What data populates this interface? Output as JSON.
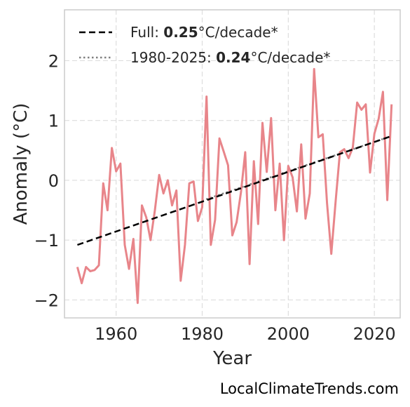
{
  "colors": {
    "anomaly_line": "#e8858a",
    "trend_full": "#000000",
    "trend_recent": "#808080",
    "grid": "#dddddd",
    "frame": "#cccccc"
  },
  "footer": {
    "source_text": "LocalClimateTrends.com"
  },
  "chart_data": {
    "type": "line",
    "xlabel": "Year",
    "ylabel": "Anomaly (°C)",
    "xlim": [
      1948,
      2026
    ],
    "ylim": [
      -2.3,
      2.85
    ],
    "xticks": [
      1960,
      1980,
      2000,
      2020
    ],
    "yticks": [
      -2,
      -1,
      0,
      1,
      2
    ],
    "ytick_labels": [
      "−2",
      "−1",
      "0",
      "1",
      "2"
    ],
    "grid": true,
    "legend_position": "top-left",
    "x": [
      1951,
      1952,
      1953,
      1954,
      1955,
      1956,
      1957,
      1958,
      1959,
      1960,
      1961,
      1962,
      1963,
      1964,
      1965,
      1966,
      1967,
      1968,
      1969,
      1970,
      1971,
      1972,
      1973,
      1974,
      1975,
      1976,
      1977,
      1978,
      1979,
      1980,
      1981,
      1982,
      1983,
      1984,
      1985,
      1986,
      1987,
      1988,
      1989,
      1990,
      1991,
      1992,
      1993,
      1994,
      1995,
      1996,
      1997,
      1998,
      1999,
      2000,
      2001,
      2002,
      2003,
      2004,
      2005,
      2006,
      2007,
      2008,
      2009,
      2010,
      2011,
      2012,
      2013,
      2014,
      2015,
      2016,
      2017,
      2018,
      2019,
      2020,
      2021,
      2022,
      2023,
      2024
    ],
    "series": [
      {
        "values": [
          -1.45,
          -1.72,
          -1.45,
          -1.52,
          -1.5,
          -1.42,
          -0.05,
          -0.5,
          0.54,
          0.15,
          0.28,
          -1.08,
          -1.48,
          -0.98,
          -2.05,
          -0.42,
          -0.62,
          -1.0,
          -0.5,
          0.09,
          -0.22,
          0.0,
          -0.42,
          -0.17,
          -1.68,
          -1.08,
          -0.05,
          -0.02,
          -0.68,
          -0.45,
          1.4,
          -1.08,
          -0.66,
          0.7,
          0.48,
          0.25,
          -0.92,
          -0.7,
          -0.2,
          0.47,
          -1.4,
          0.32,
          -0.73,
          0.96,
          0.14,
          1.04,
          -0.5,
          0.28,
          -1.0,
          0.24,
          0.05,
          -0.52,
          0.6,
          -0.64,
          -0.22,
          1.86,
          0.72,
          0.77,
          -0.38,
          -1.23,
          -0.35,
          0.47,
          0.52,
          0.37,
          0.55,
          1.3,
          1.18,
          1.27,
          0.13,
          0.78,
          1.03,
          1.48,
          -0.33,
          1.27
        ]
      }
    ],
    "trends": [
      {
        "label_prefix": "Full: ",
        "label_value": "0.25",
        "label_suffix": "°C/decade*",
        "style": "dashed",
        "start": [
          1951,
          -1.08
        ],
        "end": [
          2024,
          0.74
        ]
      },
      {
        "label_prefix": "1980-2025: ",
        "label_value": "0.24",
        "label_suffix": "°C/decade*",
        "style": "dotted",
        "start": [
          1980,
          -0.34
        ],
        "end": [
          2024,
          0.74
        ]
      }
    ]
  }
}
